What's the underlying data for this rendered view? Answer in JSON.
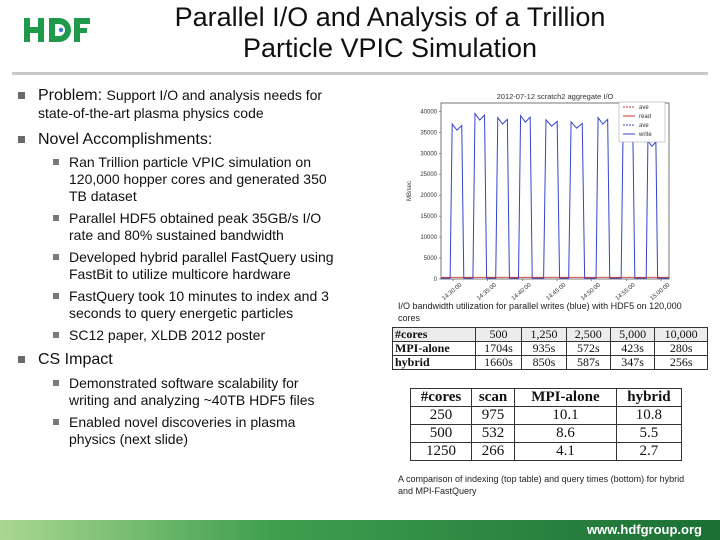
{
  "logo": {
    "text": "HDF",
    "color": "#1e9a4a",
    "accent": "#3a7bd5"
  },
  "title": {
    "line1": "Parallel I/O and Analysis of a Trillion",
    "line2": "Particle VPIC Simulation"
  },
  "bullets": {
    "problem": {
      "label": "Problem:",
      "text_line1": "Support I/O and analysis needs for",
      "text_line2": "state-of-the-art plasma physics code"
    },
    "novel": {
      "label": "Novel Accomplishments:",
      "items": [
        {
          "line1": "Ran Trillion particle VPIC simulation on",
          "line2": "120,000 hopper cores and generated 350",
          "line3": "TB dataset"
        },
        {
          "line1": "Parallel HDF5 obtained peak 35GB/s I/O",
          "line2": "rate and 80% sustained bandwidth"
        },
        {
          "line1": "Developed hybrid parallel FastQuery using",
          "line2": "FastBit to utilize multicore hardware"
        },
        {
          "line1": "FastQuery took 10 minutes to index and 3",
          "line2": "seconds to query energetic particles"
        },
        {
          "line1": "SC12 paper, XLDB 2012 poster"
        }
      ]
    },
    "cs_impact": {
      "label": "CS Impact",
      "items": [
        {
          "line1": "Demonstrated software scalability for",
          "line2": "writing and analyzing ~40TB HDF5 files"
        },
        {
          "line1": "Enabled novel discoveries in plasma",
          "line2": "physics (next slide)"
        }
      ]
    }
  },
  "chart_data": {
    "type": "line",
    "title": "2012-07-12 scratch2 aggregate I/O",
    "ylabel": "MB/sec",
    "ylim": [
      0,
      42000
    ],
    "yticks": [
      0,
      5000,
      10000,
      15000,
      20000,
      25000,
      30000,
      35000,
      40000
    ],
    "xticks": [
      "14:30:00",
      "14:35:00",
      "14:40:00",
      "14:45:00",
      "14:50:00",
      "14:55:00",
      "15:00:00"
    ],
    "legend_position": "top-right",
    "legend": [
      "ave",
      "read",
      "ave",
      "write"
    ],
    "series": [
      {
        "name": "write",
        "color": "#3344cc",
        "note": "nine write bursts",
        "bursts": [
          {
            "start": 0.04,
            "end": 0.1,
            "peak": 37000
          },
          {
            "start": 0.14,
            "end": 0.2,
            "peak": 39500
          },
          {
            "start": 0.24,
            "end": 0.3,
            "peak": 38500
          },
          {
            "start": 0.34,
            "end": 0.4,
            "peak": 39000
          },
          {
            "start": 0.45,
            "end": 0.52,
            "peak": 38000
          },
          {
            "start": 0.56,
            "end": 0.63,
            "peak": 37500
          },
          {
            "start": 0.68,
            "end": 0.74,
            "peak": 38500
          },
          {
            "start": 0.79,
            "end": 0.85,
            "peak": 37000
          },
          {
            "start": 0.9,
            "end": 0.95,
            "peak": 33000
          }
        ]
      },
      {
        "name": "read",
        "color": "#cc3333",
        "baseline": 400
      }
    ]
  },
  "captions": {
    "chart": "I/O bandwidth utilization for parallel writes (blue) with HDF5 on 120,000 cores",
    "tables": "A comparison of indexing (top table) and query times (bottom) for hybrid and MPI-FastQuery"
  },
  "table_index": {
    "header": [
      "#cores",
      "500",
      "1,250",
      "2,500",
      "5,000",
      "10,000"
    ],
    "rows": [
      [
        "MPI-alone",
        "1704s",
        "935s",
        "572s",
        "423s",
        "280s"
      ],
      [
        "hybrid",
        "1660s",
        "850s",
        "587s",
        "347s",
        "256s"
      ]
    ]
  },
  "table_query": {
    "header": [
      "#cores",
      "scan",
      "MPI-alone",
      "hybrid"
    ],
    "rows": [
      [
        "250",
        "975",
        "10.1",
        "10.8"
      ],
      [
        "500",
        "532",
        "8.6",
        "5.5"
      ],
      [
        "1250",
        "266",
        "4.1",
        "2.7"
      ]
    ]
  },
  "footer": {
    "url": "www.hdfgroup.org"
  }
}
